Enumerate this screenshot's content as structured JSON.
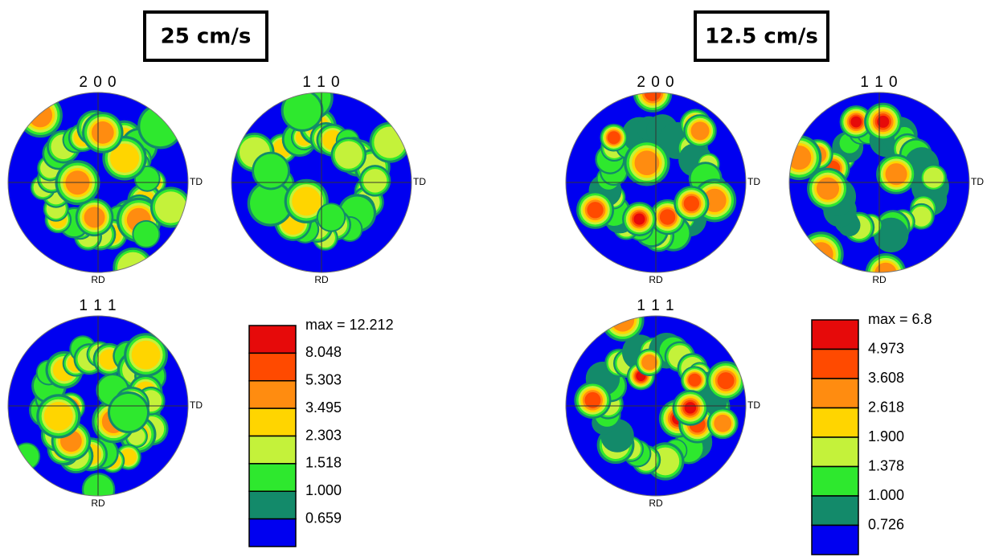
{
  "panels": [
    {
      "title": "25 cm/s",
      "figures": [
        {
          "label": "2 0 0",
          "td": "TD",
          "rd": "RD"
        },
        {
          "label": "1 1 0",
          "td": "TD",
          "rd": "RD"
        },
        {
          "label": "1 1 1",
          "td": "TD",
          "rd": "RD"
        }
      ],
      "legend": {
        "max": "max = 12.212",
        "levels": [
          "8.048",
          "5.303",
          "3.495",
          "2.303",
          "1.518",
          "1.000",
          "0.659"
        ]
      }
    },
    {
      "title": "12.5 cm/s",
      "figures": [
        {
          "label": "2 0 0",
          "td": "TD",
          "rd": "RD"
        },
        {
          "label": "1 1 0",
          "td": "TD",
          "rd": "RD"
        },
        {
          "label": "1 1 1",
          "td": "TD",
          "rd": "RD"
        }
      ],
      "legend": {
        "max": "max = 6.8",
        "levels": [
          "4.973",
          "3.608",
          "2.618",
          "1.900",
          "1.378",
          "1.000",
          "0.726"
        ]
      }
    }
  ],
  "legend_colors": [
    "#e60a0a",
    "#ff4a00",
    "#ff8c10",
    "#ffd500",
    "#c4f23a",
    "#2ee82e",
    "#138a6a",
    "#0000f0"
  ]
}
